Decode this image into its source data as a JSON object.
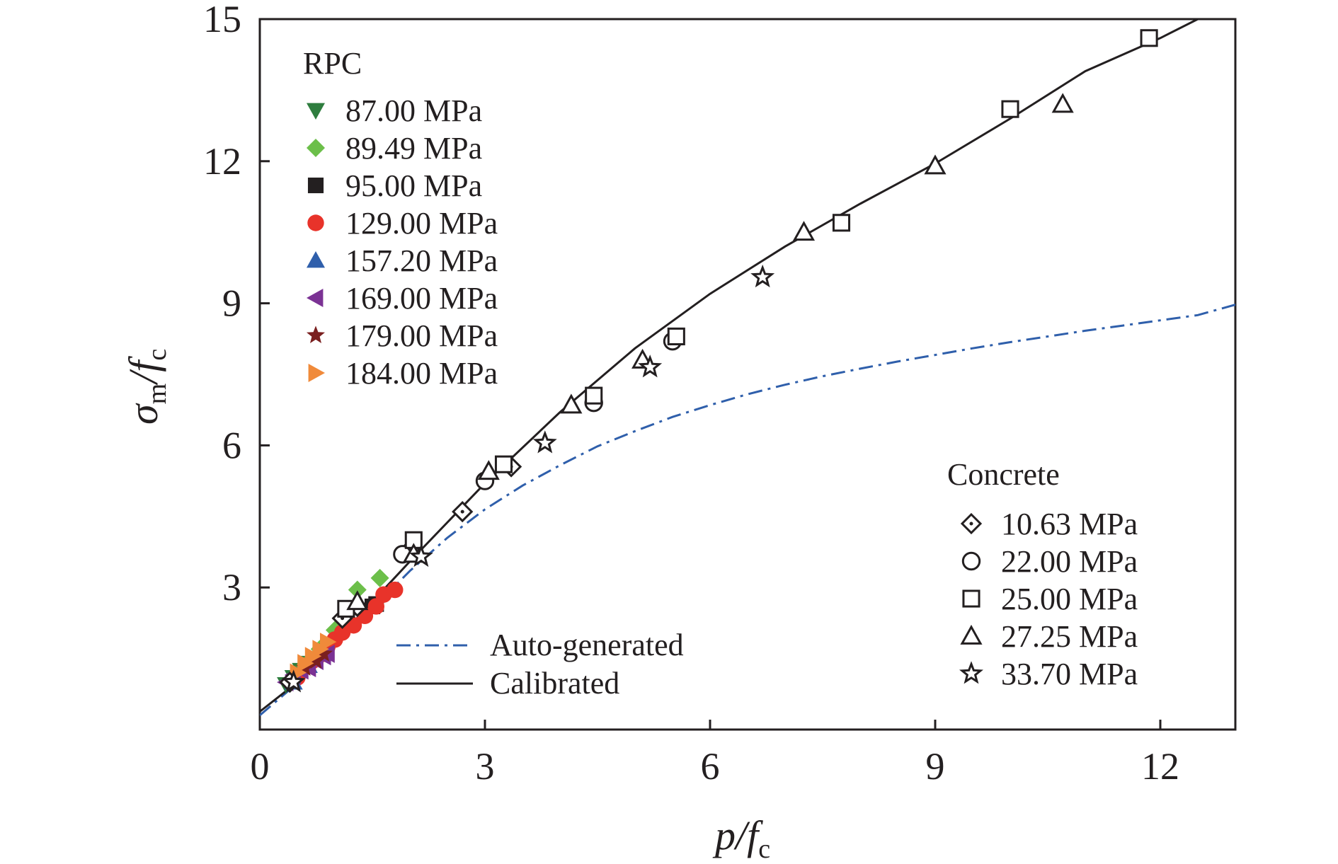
{
  "chart_data": {
    "type": "scatter",
    "xlabel": {
      "main": "p/f",
      "sub": "c"
    },
    "ylabel": {
      "main": "σ",
      "sub": "m",
      "sep": "/f",
      "sub2": "c"
    },
    "xlim": [
      0,
      13
    ],
    "ylim": [
      0,
      15
    ],
    "xticks": [
      0,
      3,
      6,
      9,
      12
    ],
    "yticks": [
      3,
      6,
      9,
      12,
      15
    ],
    "xtick_labels": [
      "0",
      "3",
      "6",
      "9",
      "12"
    ],
    "ytick_labels": [
      "3",
      "6",
      "9",
      "12",
      "15"
    ],
    "grid": false,
    "legend_rpc": {
      "title": "RPC",
      "placement": "top-left",
      "entries": [
        {
          "label": "87.00 MPa",
          "marker": "triangle-down",
          "color": "#2e7d3e"
        },
        {
          "label": "89.49 MPa",
          "marker": "diamond",
          "color": "#6cbf4a"
        },
        {
          "label": "95.00 MPa",
          "marker": "square",
          "color": "#231f20"
        },
        {
          "label": "129.00 MPa",
          "marker": "circle",
          "color": "#e8332a"
        },
        {
          "label": "157.20 MPa",
          "marker": "triangle-up",
          "color": "#2f5fab"
        },
        {
          "label": "169.00 MPa",
          "marker": "triangle-left",
          "color": "#7b3294"
        },
        {
          "label": "179.00 MPa",
          "marker": "star",
          "color": "#7a1f1f"
        },
        {
          "label": "184.00 MPa",
          "marker": "triangle-right",
          "color": "#f08a3a"
        }
      ]
    },
    "legend_concrete": {
      "title": "Concrete",
      "placement": "bottom-right",
      "entries": [
        {
          "label": "10.63 MPa",
          "marker": "diamond-dot"
        },
        {
          "label": "22.00 MPa",
          "marker": "circle-open"
        },
        {
          "label": "25.00 MPa",
          "marker": "square-open"
        },
        {
          "label": "27.25 MPa",
          "marker": "triangle-open"
        },
        {
          "label": "33.70 MPa",
          "marker": "star-open"
        }
      ]
    },
    "legend_lines": {
      "placement": "bottom-center",
      "entries": [
        {
          "label": "Auto-generated",
          "style": "dash-dot",
          "color": "#2f5fab"
        },
        {
          "label": "Calibrated",
          "style": "solid",
          "color": "#231f20"
        }
      ]
    },
    "lines": [
      {
        "name": "Auto-generated",
        "color": "#2f5fab",
        "style": "dash-dot",
        "x": [
          0,
          0.5,
          1,
          1.5,
          2,
          2.5,
          3,
          3.5,
          4,
          4.5,
          5,
          5.5,
          6,
          6.5,
          7,
          7.5,
          8,
          8.5,
          9,
          9.5,
          10,
          10.5,
          11,
          11.5,
          12,
          12.5,
          13
        ],
        "y": [
          0.3,
          0.98,
          1.75,
          2.55,
          3.35,
          4.05,
          4.65,
          5.15,
          5.58,
          5.98,
          6.3,
          6.6,
          6.85,
          7.08,
          7.28,
          7.46,
          7.62,
          7.77,
          7.91,
          8.05,
          8.18,
          8.3,
          8.42,
          8.53,
          8.64,
          8.75,
          8.97
        ]
      },
      {
        "name": "Calibrated",
        "color": "#231f20",
        "style": "solid",
        "x": [
          0,
          0.5,
          1,
          1.5,
          2,
          3,
          4,
          5,
          6,
          7,
          8,
          9,
          10,
          11,
          12,
          12.5
        ],
        "y": [
          0.38,
          1.0,
          1.85,
          2.7,
          3.55,
          5.2,
          6.7,
          8.05,
          9.2,
          10.2,
          11.1,
          11.95,
          12.9,
          13.9,
          14.6,
          15.0
        ]
      }
    ],
    "series": [
      {
        "name": "87.00 MPa",
        "group": "RPC",
        "marker": "triangle-down",
        "color": "#2e7d3e",
        "filled": true,
        "x": [
          0.35,
          0.45,
          0.55,
          0.65
        ],
        "y": [
          0.95,
          1.1,
          1.25,
          1.4
        ]
      },
      {
        "name": "89.49 MPa",
        "group": "RPC",
        "marker": "diamond",
        "color": "#6cbf4a",
        "filled": true,
        "x": [
          0.4,
          0.6,
          0.8,
          1.0,
          1.3,
          1.6
        ],
        "y": [
          1.0,
          1.35,
          1.7,
          2.1,
          2.95,
          3.2
        ]
      },
      {
        "name": "95.00 MPa",
        "group": "RPC",
        "marker": "square",
        "color": "#231f20",
        "filled": true,
        "x": [
          1.5,
          1.55
        ],
        "y": [
          2.6,
          2.65
        ]
      },
      {
        "name": "129.00 MPa",
        "group": "RPC",
        "marker": "circle",
        "color": "#e8332a",
        "filled": true,
        "x": [
          0.5,
          0.7,
          0.85,
          0.9,
          1.0,
          1.1,
          1.25,
          1.4,
          1.55,
          1.65,
          1.8
        ],
        "y": [
          1.1,
          1.45,
          1.6,
          1.75,
          1.9,
          2.05,
          2.2,
          2.4,
          2.6,
          2.85,
          2.95
        ]
      },
      {
        "name": "157.20 MPa",
        "group": "RPC",
        "marker": "triangle-up",
        "color": "#2f5fab",
        "filled": true,
        "x": [
          0.45,
          0.65,
          0.8
        ],
        "y": [
          1.0,
          1.35,
          1.6
        ]
      },
      {
        "name": "169.00 MPa",
        "group": "RPC",
        "marker": "triangle-left",
        "color": "#7b3294",
        "filled": true,
        "x": [
          0.35,
          0.45,
          0.55,
          0.65,
          0.75,
          0.85,
          0.9
        ],
        "y": [
          1.0,
          1.15,
          1.25,
          1.3,
          1.45,
          1.55,
          1.6
        ]
      },
      {
        "name": "179.00 MPa",
        "group": "RPC",
        "marker": "star",
        "color": "#7a1f1f",
        "filled": true,
        "x": [
          0.6,
          0.75,
          0.85
        ],
        "y": [
          1.3,
          1.45,
          1.6
        ]
      },
      {
        "name": "184.00 MPa",
        "group": "RPC",
        "marker": "triangle-right",
        "color": "#f08a3a",
        "filled": true,
        "x": [
          0.5,
          0.6,
          0.7,
          0.8,
          0.9
        ],
        "y": [
          1.2,
          1.4,
          1.55,
          1.7,
          1.85
        ]
      },
      {
        "name": "10.63 MPa",
        "group": "Concrete",
        "marker": "diamond-dot",
        "color": "#231f20",
        "filled": false,
        "x": [
          0.4,
          1.1,
          1.3,
          2.0,
          2.7,
          3.35
        ],
        "y": [
          1.0,
          2.35,
          2.6,
          3.8,
          4.6,
          5.55
        ]
      },
      {
        "name": "22.00 MPa",
        "group": "Concrete",
        "marker": "circle-open",
        "color": "#231f20",
        "filled": false,
        "x": [
          1.9,
          3.0,
          4.45,
          5.5
        ],
        "y": [
          3.7,
          5.25,
          6.9,
          8.2
        ]
      },
      {
        "name": "25.00 MPa",
        "group": "Concrete",
        "marker": "square-open",
        "color": "#231f20",
        "filled": false,
        "x": [
          1.15,
          2.05,
          3.25,
          4.45,
          5.55,
          7.75,
          10.0,
          11.85
        ],
        "y": [
          2.55,
          4.0,
          5.6,
          7.05,
          8.3,
          10.7,
          13.1,
          14.6
        ]
      },
      {
        "name": "27.25 MPa",
        "group": "Concrete",
        "marker": "triangle-open",
        "color": "#231f20",
        "filled": false,
        "x": [
          1.3,
          2.05,
          3.05,
          4.15,
          5.1,
          7.25,
          9.0,
          10.7
        ],
        "y": [
          2.7,
          3.7,
          5.45,
          6.85,
          7.8,
          10.5,
          11.9,
          13.2
        ]
      },
      {
        "name": "33.70 MPa",
        "group": "Concrete",
        "marker": "star-open",
        "color": "#231f20",
        "filled": false,
        "x": [
          0.45,
          2.15,
          3.8,
          5.2,
          6.7
        ],
        "y": [
          1.0,
          3.65,
          6.05,
          7.65,
          9.55
        ]
      }
    ]
  }
}
